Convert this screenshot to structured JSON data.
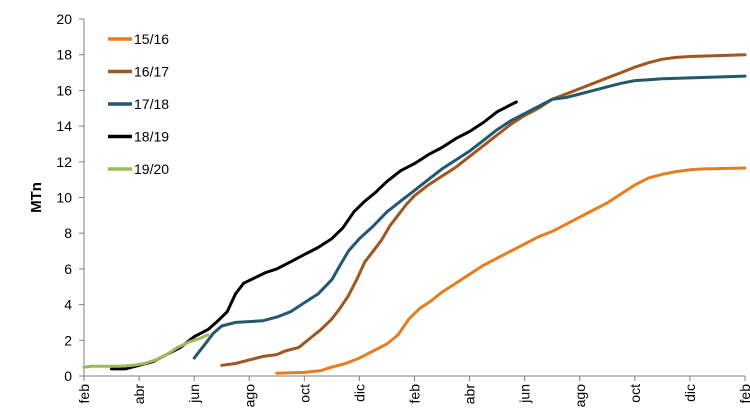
{
  "chart_data": {
    "type": "line",
    "title": "",
    "xlabel": "",
    "ylabel": "MTn",
    "ylim": [
      0,
      20
    ],
    "yticks": [
      0,
      2,
      4,
      6,
      8,
      10,
      12,
      14,
      16,
      18,
      20
    ],
    "x_tick_labels": [
      "feb",
      "abr",
      "jun",
      "ago",
      "oct",
      "dic",
      "feb",
      "abr",
      "jun",
      "ago",
      "oct",
      "dic",
      "feb"
    ],
    "x_unit": "months since first feb tick",
    "xlim": [
      0,
      24
    ],
    "grid": false,
    "legend_position": "top-left",
    "series": [
      {
        "name": "15/16",
        "color": "#e87d1e",
        "points": [
          [
            7.0,
            0.15
          ],
          [
            8.0,
            0.2
          ],
          [
            8.6,
            0.3
          ],
          [
            9.0,
            0.5
          ],
          [
            9.5,
            0.7
          ],
          [
            10.0,
            1.0
          ],
          [
            10.5,
            1.4
          ],
          [
            11.0,
            1.8
          ],
          [
            11.4,
            2.3
          ],
          [
            11.8,
            3.2
          ],
          [
            12.2,
            3.8
          ],
          [
            12.6,
            4.2
          ],
          [
            13.0,
            4.7
          ],
          [
            13.5,
            5.2
          ],
          [
            14.0,
            5.7
          ],
          [
            14.5,
            6.2
          ],
          [
            15.0,
            6.6
          ],
          [
            15.5,
            7.0
          ],
          [
            16.0,
            7.4
          ],
          [
            16.5,
            7.8
          ],
          [
            17.0,
            8.1
          ],
          [
            17.5,
            8.5
          ],
          [
            18.0,
            8.9
          ],
          [
            18.5,
            9.3
          ],
          [
            19.0,
            9.7
          ],
          [
            19.5,
            10.2
          ],
          [
            20.0,
            10.7
          ],
          [
            20.5,
            11.1
          ],
          [
            21.0,
            11.3
          ],
          [
            21.5,
            11.45
          ],
          [
            22.0,
            11.55
          ],
          [
            22.5,
            11.6
          ],
          [
            23.0,
            11.62
          ],
          [
            24.0,
            11.65
          ]
        ]
      },
      {
        "name": "16/17",
        "color": "#a0561e",
        "points": [
          [
            5.0,
            0.6
          ],
          [
            5.5,
            0.7
          ],
          [
            6.0,
            0.9
          ],
          [
            6.5,
            1.1
          ],
          [
            7.0,
            1.2
          ],
          [
            7.3,
            1.4
          ],
          [
            7.8,
            1.6
          ],
          [
            8.2,
            2.1
          ],
          [
            8.6,
            2.6
          ],
          [
            9.0,
            3.2
          ],
          [
            9.3,
            3.8
          ],
          [
            9.6,
            4.5
          ],
          [
            9.9,
            5.4
          ],
          [
            10.2,
            6.4
          ],
          [
            10.5,
            7.0
          ],
          [
            10.8,
            7.6
          ],
          [
            11.1,
            8.4
          ],
          [
            11.4,
            9.0
          ],
          [
            11.7,
            9.6
          ],
          [
            12.0,
            10.1
          ],
          [
            12.5,
            10.7
          ],
          [
            13.0,
            11.2
          ],
          [
            13.5,
            11.7
          ],
          [
            14.0,
            12.3
          ],
          [
            14.5,
            12.9
          ],
          [
            15.0,
            13.5
          ],
          [
            15.5,
            14.1
          ],
          [
            16.0,
            14.6
          ],
          [
            16.5,
            15.0
          ],
          [
            17.0,
            15.5
          ],
          [
            17.5,
            15.8
          ],
          [
            18.0,
            16.1
          ],
          [
            18.5,
            16.4
          ],
          [
            19.0,
            16.7
          ],
          [
            19.5,
            17.0
          ],
          [
            20.0,
            17.3
          ],
          [
            20.5,
            17.55
          ],
          [
            21.0,
            17.75
          ],
          [
            21.5,
            17.85
          ],
          [
            22.0,
            17.9
          ],
          [
            23.0,
            17.95
          ],
          [
            24.0,
            18.0
          ]
        ]
      },
      {
        "name": "17/18",
        "color": "#23586e",
        "points": [
          [
            4.0,
            1.0
          ],
          [
            4.4,
            1.8
          ],
          [
            4.7,
            2.4
          ],
          [
            5.0,
            2.8
          ],
          [
            5.5,
            3.0
          ],
          [
            6.0,
            3.05
          ],
          [
            6.5,
            3.1
          ],
          [
            7.0,
            3.3
          ],
          [
            7.5,
            3.6
          ],
          [
            8.0,
            4.1
          ],
          [
            8.5,
            4.6
          ],
          [
            9.0,
            5.4
          ],
          [
            9.3,
            6.2
          ],
          [
            9.6,
            7.0
          ],
          [
            10.0,
            7.7
          ],
          [
            10.5,
            8.4
          ],
          [
            11.0,
            9.2
          ],
          [
            11.5,
            9.8
          ],
          [
            12.0,
            10.4
          ],
          [
            12.5,
            11.0
          ],
          [
            13.0,
            11.6
          ],
          [
            13.5,
            12.1
          ],
          [
            14.0,
            12.6
          ],
          [
            14.5,
            13.2
          ],
          [
            15.0,
            13.8
          ],
          [
            15.5,
            14.3
          ],
          [
            16.0,
            14.7
          ],
          [
            16.5,
            15.1
          ],
          [
            17.0,
            15.5
          ],
          [
            17.5,
            15.6
          ],
          [
            18.0,
            15.8
          ],
          [
            18.5,
            16.0
          ],
          [
            19.0,
            16.2
          ],
          [
            19.5,
            16.4
          ],
          [
            20.0,
            16.55
          ],
          [
            20.5,
            16.6
          ],
          [
            21.0,
            16.65
          ],
          [
            22.0,
            16.7
          ],
          [
            23.0,
            16.75
          ],
          [
            24.0,
            16.8
          ]
        ]
      },
      {
        "name": "18/19",
        "color": "#000000",
        "points": [
          [
            1.0,
            0.4
          ],
          [
            1.5,
            0.4
          ],
          [
            2.0,
            0.6
          ],
          [
            2.5,
            0.8
          ],
          [
            3.0,
            1.2
          ],
          [
            3.5,
            1.6
          ],
          [
            4.0,
            2.2
          ],
          [
            4.5,
            2.6
          ],
          [
            4.8,
            3.0
          ],
          [
            5.2,
            3.6
          ],
          [
            5.5,
            4.6
          ],
          [
            5.8,
            5.2
          ],
          [
            6.2,
            5.5
          ],
          [
            6.6,
            5.8
          ],
          [
            7.0,
            6.0
          ],
          [
            7.5,
            6.4
          ],
          [
            8.0,
            6.8
          ],
          [
            8.5,
            7.2
          ],
          [
            9.0,
            7.7
          ],
          [
            9.4,
            8.3
          ],
          [
            9.8,
            9.2
          ],
          [
            10.2,
            9.8
          ],
          [
            10.6,
            10.3
          ],
          [
            11.0,
            10.9
          ],
          [
            11.5,
            11.5
          ],
          [
            12.0,
            11.9
          ],
          [
            12.5,
            12.4
          ],
          [
            13.0,
            12.8
          ],
          [
            13.5,
            13.3
          ],
          [
            14.0,
            13.7
          ],
          [
            14.5,
            14.2
          ],
          [
            15.0,
            14.8
          ],
          [
            15.5,
            15.2
          ],
          [
            15.7,
            15.35
          ]
        ]
      },
      {
        "name": "19/20",
        "color": "#9bbb59",
        "points": [
          [
            0.0,
            0.5
          ],
          [
            0.3,
            0.55
          ],
          [
            0.8,
            0.55
          ],
          [
            1.3,
            0.55
          ],
          [
            1.8,
            0.6
          ],
          [
            2.2,
            0.7
          ],
          [
            2.6,
            0.9
          ],
          [
            3.0,
            1.2
          ],
          [
            3.4,
            1.6
          ],
          [
            3.8,
            1.9
          ],
          [
            4.2,
            2.1
          ],
          [
            4.5,
            2.3
          ]
        ]
      }
    ]
  }
}
